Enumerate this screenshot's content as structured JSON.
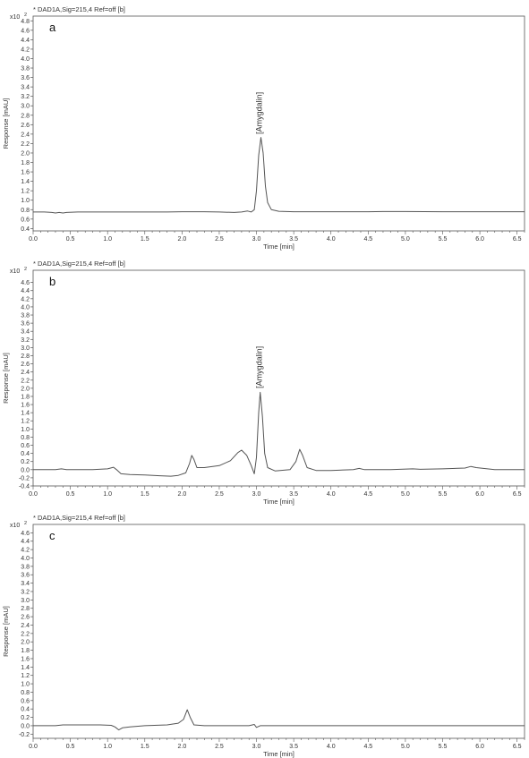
{
  "chart_data": [
    {
      "type": "line",
      "header": "* DAD1A,Sig=215,4  Ref=off [b]",
      "exponent_label": "x10",
      "exponent_power": "2",
      "panel_label": "a",
      "xlabel": "Time [min]",
      "ylabel": "Response [mAU]",
      "xlim": [
        0.0,
        6.6
      ],
      "ylim": [
        0.35,
        4.9
      ],
      "xticks": [
        "0.0",
        "0.5",
        "1.0",
        "1.5",
        "2.0",
        "2.5",
        "3.0",
        "3.5",
        "4.0",
        "4.5",
        "5.0",
        "5.5",
        "6.0",
        "6.5"
      ],
      "yticks": [
        "0.4",
        "0.6",
        "0.8",
        "1.0",
        "1.2",
        "1.4",
        "1.6",
        "1.8",
        "2.0",
        "2.2",
        "2.4",
        "2.6",
        "2.8",
        "3.0",
        "3.2",
        "3.4",
        "3.6",
        "3.8",
        "4.0",
        "4.2",
        "4.4",
        "4.6",
        "4.8"
      ],
      "peak_annotation": {
        "text": "[Amygdalin]",
        "x": 3.05,
        "y": 2.4
      },
      "series": [
        {
          "values": [
            [
              0.0,
              0.75
            ],
            [
              0.15,
              0.75
            ],
            [
              0.25,
              0.74
            ],
            [
              0.3,
              0.73
            ],
            [
              0.35,
              0.74
            ],
            [
              0.4,
              0.73
            ],
            [
              0.45,
              0.74
            ],
            [
              0.6,
              0.75
            ],
            [
              1.0,
              0.75
            ],
            [
              1.5,
              0.75
            ],
            [
              1.8,
              0.75
            ],
            [
              2.0,
              0.755
            ],
            [
              2.3,
              0.755
            ],
            [
              2.5,
              0.75
            ],
            [
              2.7,
              0.74
            ],
            [
              2.8,
              0.75
            ],
            [
              2.88,
              0.77
            ],
            [
              2.93,
              0.75
            ],
            [
              2.97,
              0.8
            ],
            [
              3.0,
              1.2
            ],
            [
              3.03,
              1.95
            ],
            [
              3.06,
              2.33
            ],
            [
              3.09,
              2.0
            ],
            [
              3.12,
              1.3
            ],
            [
              3.15,
              0.95
            ],
            [
              3.2,
              0.8
            ],
            [
              3.3,
              0.765
            ],
            [
              3.5,
              0.755
            ],
            [
              4.0,
              0.755
            ],
            [
              4.5,
              0.755
            ],
            [
              4.7,
              0.76
            ],
            [
              5.0,
              0.76
            ],
            [
              5.5,
              0.755
            ],
            [
              6.0,
              0.755
            ],
            [
              6.6,
              0.755
            ]
          ]
        }
      ]
    },
    {
      "type": "line",
      "header": "* DAD1A,Sig=215,4  Ref=off [b]",
      "exponent_label": "x10",
      "exponent_power": "2",
      "panel_label": "b",
      "xlabel": "Time [min]",
      "ylabel": "Response [mAU]",
      "xlim": [
        0.0,
        6.6
      ],
      "ylim": [
        -0.4,
        4.9
      ],
      "xticks": [
        "0.0",
        "0.5",
        "1.0",
        "1.5",
        "2.0",
        "2.5",
        "3.0",
        "3.5",
        "4.0",
        "4.5",
        "5.0",
        "5.5",
        "6.0",
        "6.5"
      ],
      "yticks": [
        "-0.4",
        "-0.2",
        "0.0",
        "0.2",
        "0.4",
        "0.6",
        "0.8",
        "1.0",
        "1.2",
        "1.4",
        "1.6",
        "1.8",
        "2.0",
        "2.2",
        "2.4",
        "2.6",
        "2.8",
        "3.0",
        "3.2",
        "3.4",
        "3.6",
        "3.8",
        "4.0",
        "4.2",
        "4.4",
        "4.6"
      ],
      "peak_annotation": {
        "text": "[Amygdalin]",
        "x": 3.05,
        "y": 2.0
      },
      "series": [
        {
          "values": [
            [
              0.0,
              0.0
            ],
            [
              0.3,
              0.0
            ],
            [
              0.38,
              0.02
            ],
            [
              0.45,
              0.0
            ],
            [
              0.8,
              0.0
            ],
            [
              1.0,
              0.02
            ],
            [
              1.08,
              0.06
            ],
            [
              1.12,
              0.0
            ],
            [
              1.18,
              -0.1
            ],
            [
              1.3,
              -0.12
            ],
            [
              1.5,
              -0.13
            ],
            [
              1.7,
              -0.15
            ],
            [
              1.85,
              -0.16
            ],
            [
              1.95,
              -0.14
            ],
            [
              2.05,
              -0.08
            ],
            [
              2.1,
              0.15
            ],
            [
              2.13,
              0.35
            ],
            [
              2.16,
              0.25
            ],
            [
              2.2,
              0.05
            ],
            [
              2.3,
              0.05
            ],
            [
              2.5,
              0.1
            ],
            [
              2.65,
              0.22
            ],
            [
              2.75,
              0.42
            ],
            [
              2.8,
              0.48
            ],
            [
              2.87,
              0.35
            ],
            [
              2.93,
              0.1
            ],
            [
              2.97,
              -0.1
            ],
            [
              3.0,
              0.3
            ],
            [
              3.03,
              1.4
            ],
            [
              3.05,
              1.9
            ],
            [
              3.08,
              1.3
            ],
            [
              3.11,
              0.4
            ],
            [
              3.15,
              0.05
            ],
            [
              3.25,
              -0.03
            ],
            [
              3.45,
              0.0
            ],
            [
              3.53,
              0.2
            ],
            [
              3.58,
              0.5
            ],
            [
              3.62,
              0.35
            ],
            [
              3.68,
              0.05
            ],
            [
              3.8,
              -0.02
            ],
            [
              4.0,
              -0.02
            ],
            [
              4.3,
              0.0
            ],
            [
              4.38,
              0.03
            ],
            [
              4.45,
              0.0
            ],
            [
              4.8,
              0.0
            ],
            [
              5.1,
              0.02
            ],
            [
              5.2,
              0.01
            ],
            [
              5.5,
              0.02
            ],
            [
              5.8,
              0.04
            ],
            [
              5.88,
              0.08
            ],
            [
              5.95,
              0.05
            ],
            [
              6.2,
              0.0
            ],
            [
              6.6,
              0.0
            ]
          ]
        }
      ]
    },
    {
      "type": "line",
      "header": "* DAD1A,Sig=215,4  Ref=off [b]",
      "exponent_label": "x10",
      "exponent_power": "2",
      "panel_label": "c",
      "xlabel": "Time [min]",
      "ylabel": "Response [mAU]",
      "xlim": [
        0.0,
        6.6
      ],
      "ylim": [
        -0.3,
        4.8
      ],
      "xticks": [
        "0.0",
        "0.5",
        "1.0",
        "1.5",
        "2.0",
        "2.5",
        "3.0",
        "3.5",
        "4.0",
        "4.5",
        "5.0",
        "5.5",
        "6.0",
        "6.5"
      ],
      "yticks": [
        "-0.2",
        "0.0",
        "0.2",
        "0.4",
        "0.6",
        "0.8",
        "1.0",
        "1.2",
        "1.4",
        "1.6",
        "1.8",
        "2.0",
        "2.2",
        "2.4",
        "2.6",
        "2.8",
        "3.0",
        "3.2",
        "3.4",
        "3.6",
        "3.8",
        "4.0",
        "4.2",
        "4.4",
        "4.6"
      ],
      "peak_annotation": null,
      "series": [
        {
          "values": [
            [
              0.0,
              0.0
            ],
            [
              0.3,
              0.0
            ],
            [
              0.4,
              0.02
            ],
            [
              0.9,
              0.02
            ],
            [
              1.05,
              0.01
            ],
            [
              1.1,
              -0.03
            ],
            [
              1.15,
              -0.1
            ],
            [
              1.2,
              -0.05
            ],
            [
              1.3,
              -0.03
            ],
            [
              1.5,
              0.0
            ],
            [
              1.8,
              0.02
            ],
            [
              1.95,
              0.06
            ],
            [
              2.02,
              0.15
            ],
            [
              2.07,
              0.38
            ],
            [
              2.11,
              0.2
            ],
            [
              2.16,
              0.02
            ],
            [
              2.3,
              0.0
            ],
            [
              2.9,
              0.0
            ],
            [
              2.97,
              0.03
            ],
            [
              3.0,
              -0.04
            ],
            [
              3.05,
              0.0
            ],
            [
              3.3,
              0.0
            ],
            [
              4.0,
              0.0
            ],
            [
              5.0,
              0.0
            ],
            [
              6.6,
              0.0
            ]
          ]
        }
      ]
    }
  ]
}
